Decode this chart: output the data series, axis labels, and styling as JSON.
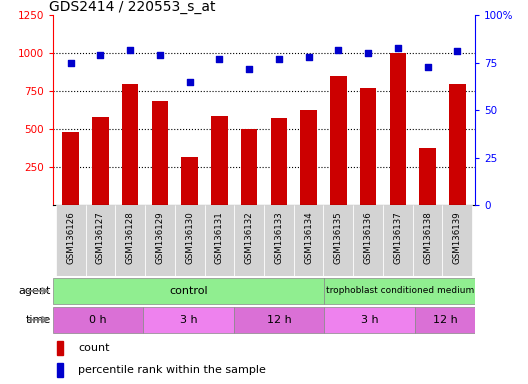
{
  "title": "GDS2414 / 220553_s_at",
  "samples": [
    "GSM136126",
    "GSM136127",
    "GSM136128",
    "GSM136129",
    "GSM136130",
    "GSM136131",
    "GSM136132",
    "GSM136133",
    "GSM136134",
    "GSM136135",
    "GSM136136",
    "GSM136137",
    "GSM136138",
    "GSM136139"
  ],
  "counts": [
    480,
    580,
    800,
    690,
    320,
    590,
    500,
    575,
    625,
    850,
    775,
    1005,
    375,
    800
  ],
  "percentile_ranks": [
    75,
    79,
    82,
    79,
    65,
    77,
    72,
    77,
    78,
    82,
    80,
    83,
    73,
    81
  ],
  "ylim_left": [
    0,
    1250
  ],
  "ylim_right": [
    0,
    100
  ],
  "yticks_left": [
    250,
    500,
    750,
    1000,
    1250
  ],
  "yticks_right": [
    0,
    25,
    50,
    75,
    100
  ],
  "ytick_labels_right": [
    "0",
    "25",
    "50",
    "75",
    "100%"
  ],
  "bar_color": "#cc0000",
  "dot_color": "#0000cc",
  "bar_width": 0.55,
  "grid_color": "black",
  "xlabel_area_bg": "#d3d3d3",
  "agent_control_color": "#90ee90",
  "agent_troph_color": "#90ee90",
  "time_color_0h": "#da70d6",
  "time_color_3h": "#ee82ee",
  "time_color_12h": "#da70d6"
}
